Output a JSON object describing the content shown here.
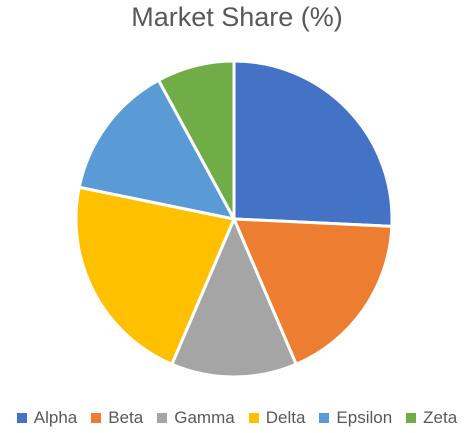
{
  "chart_data": {
    "type": "pie",
    "title": "Market Share (%)",
    "categories": [
      "Alpha",
      "Beta",
      "Gamma",
      "Delta",
      "Epsilon",
      "Zeta"
    ],
    "values": [
      26,
      18,
      13,
      22,
      14,
      8
    ],
    "colors": [
      "#4472C4",
      "#ED7D31",
      "#A5A5A5",
      "#FFC000",
      "#5B9BD5",
      "#70AD47"
    ],
    "start_angle_deg": 0,
    "direction": "clockwise",
    "slice_border_color": "#FFFFFF",
    "legend_position": "bottom"
  }
}
